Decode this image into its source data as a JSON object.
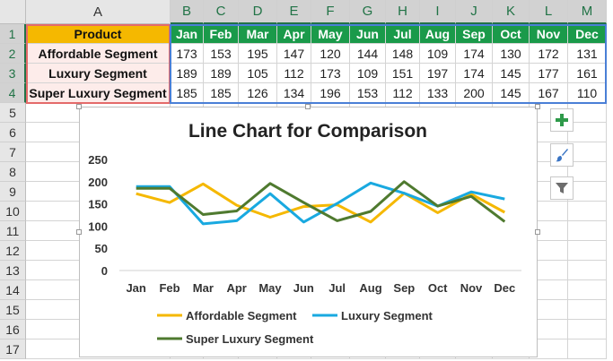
{
  "columns": [
    "A",
    "B",
    "C",
    "D",
    "E",
    "F",
    "G",
    "H",
    "I",
    "J",
    "K",
    "L",
    "M"
  ],
  "rows": [
    "1",
    "2",
    "3",
    "4",
    "5",
    "6",
    "7",
    "8",
    "9",
    "10",
    "11",
    "12",
    "13",
    "14",
    "15",
    "16",
    "17"
  ],
  "table": {
    "header_product": "Product",
    "months": [
      "Jan",
      "Feb",
      "Mar",
      "Apr",
      "May",
      "Jun",
      "Jul",
      "Aug",
      "Sep",
      "Oct",
      "Nov",
      "Dec"
    ],
    "rows": [
      {
        "product": "Affordable Segment",
        "values": [
          "173",
          "153",
          "195",
          "147",
          "120",
          "144",
          "148",
          "109",
          "174",
          "130",
          "172",
          "131"
        ]
      },
      {
        "product": "Luxury Segment",
        "values": [
          "189",
          "189",
          "105",
          "112",
          "173",
          "109",
          "151",
          "197",
          "174",
          "145",
          "177",
          "161"
        ]
      },
      {
        "product": "Super Luxury Segment",
        "values": [
          "185",
          "185",
          "126",
          "134",
          "196",
          "153",
          "112",
          "133",
          "200",
          "145",
          "167",
          "110"
        ]
      }
    ]
  },
  "side_buttons": {
    "add": "chart-elements",
    "style": "chart-styles",
    "filter": "chart-filters"
  },
  "colors": {
    "affordable": "#f5b800",
    "luxury": "#19a9e0",
    "super_luxury": "#4f7a2f",
    "header_green": "#1a9a4a",
    "header_gold": "#f5b800"
  },
  "chart_data": {
    "type": "line",
    "title": "Line Chart for Comparison",
    "categories": [
      "Jan",
      "Feb",
      "Mar",
      "Apr",
      "May",
      "Jun",
      "Jul",
      "Aug",
      "Sep",
      "Oct",
      "Nov",
      "Dec"
    ],
    "ylim": [
      0,
      250
    ],
    "yticks": [
      "0",
      "50",
      "100",
      "150",
      "200",
      "250"
    ],
    "legend_position": "bottom",
    "grid": false,
    "series": [
      {
        "name": "Affordable Segment",
        "values": [
          173,
          153,
          195,
          147,
          120,
          144,
          148,
          109,
          174,
          130,
          172,
          131
        ]
      },
      {
        "name": "Luxury Segment",
        "values": [
          189,
          189,
          105,
          112,
          173,
          109,
          151,
          197,
          174,
          145,
          177,
          161
        ]
      },
      {
        "name": "Super Luxury Segment",
        "values": [
          185,
          185,
          126,
          134,
          196,
          153,
          112,
          133,
          200,
          145,
          167,
          110
        ]
      }
    ]
  }
}
